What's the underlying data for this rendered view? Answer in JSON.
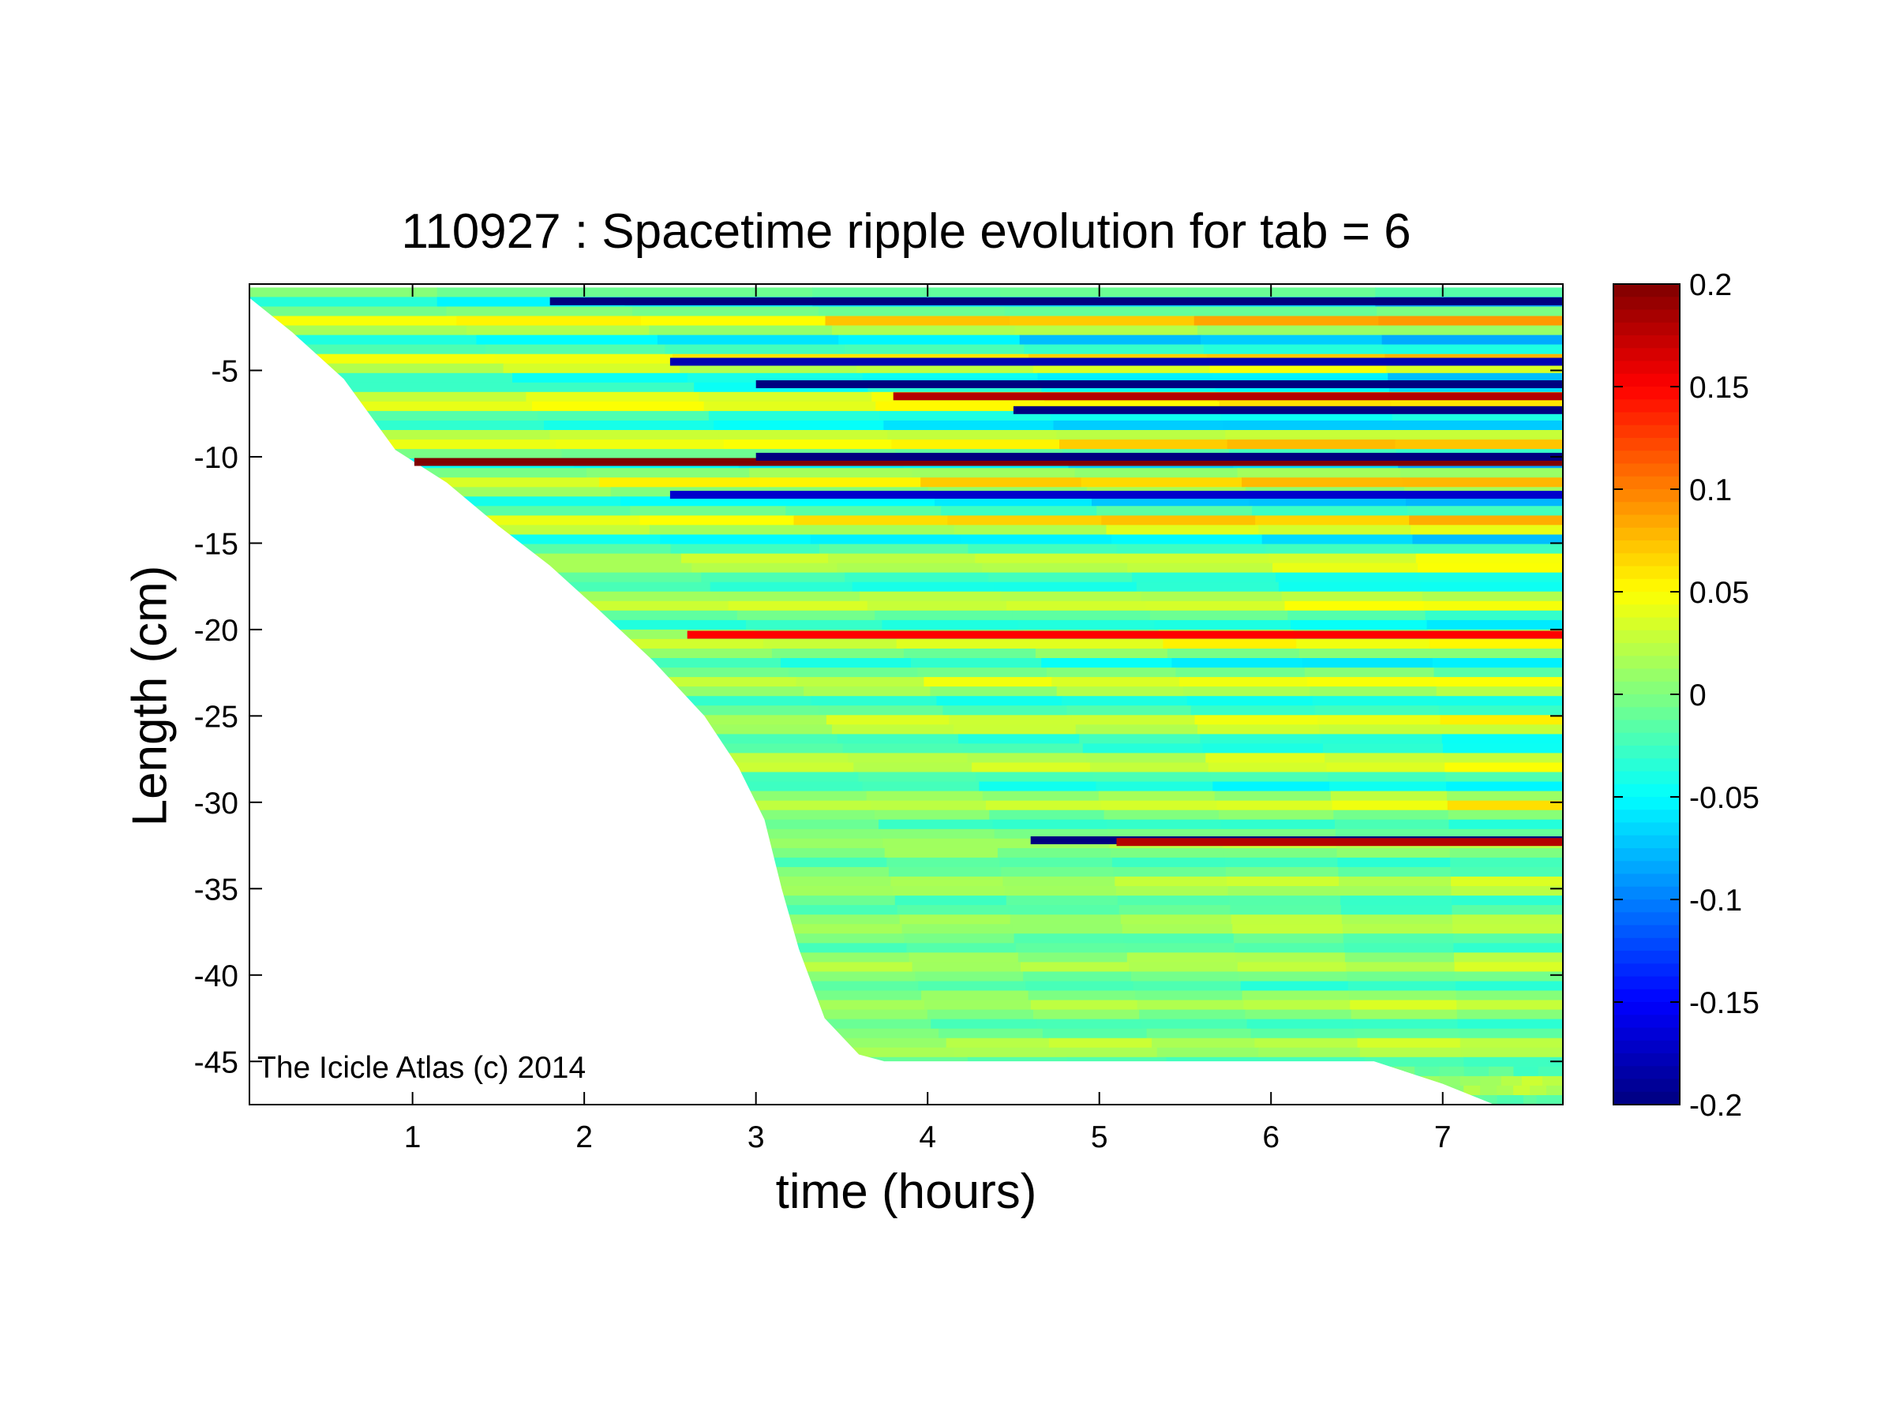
{
  "chart_data": {
    "type": "heatmap",
    "title": "110927 : Spacetime ripple evolution for tab = 6",
    "xlabel": "time (hours)",
    "ylabel": "Length (cm)",
    "xlim": [
      0.05,
      7.7
    ],
    "ylim": [
      -47.5,
      0
    ],
    "xticks": [
      1,
      2,
      3,
      4,
      5,
      6,
      7
    ],
    "yticks": [
      -5,
      -10,
      -15,
      -20,
      -25,
      -30,
      -35,
      -40,
      -45
    ],
    "colorbar": {
      "colormap": "jet",
      "clim": [
        -0.2,
        0.2
      ],
      "ticks": [
        0.2,
        0.15,
        0.1,
        0.05,
        0,
        -0.05,
        -0.1,
        -0.15,
        -0.2
      ]
    },
    "icicle_length_front": [
      [
        0.05,
        -0.8
      ],
      [
        0.3,
        -2.8
      ],
      [
        0.6,
        -5.5
      ],
      [
        0.9,
        -9.6
      ],
      [
        1.2,
        -11.5
      ],
      [
        1.5,
        -14.0
      ],
      [
        1.8,
        -16.3
      ],
      [
        2.1,
        -19.0
      ],
      [
        2.4,
        -21.8
      ],
      [
        2.7,
        -25.0
      ],
      [
        2.9,
        -28.0
      ],
      [
        3.05,
        -31.0
      ],
      [
        3.15,
        -35.0
      ],
      [
        3.25,
        -38.5
      ],
      [
        3.4,
        -42.5
      ],
      [
        3.6,
        -44.6
      ],
      [
        3.75,
        -45.0
      ],
      [
        6.6,
        -45.0
      ],
      [
        7.0,
        -46.3
      ],
      [
        7.3,
        -47.5
      ]
    ],
    "notable_ripples": [
      {
        "y": -1.0,
        "t_start": 1.8,
        "value": -0.2
      },
      {
        "y": -4.5,
        "t_start": 2.5,
        "value": -0.18
      },
      {
        "y": -5.8,
        "t_start": 3.0,
        "value": -0.2
      },
      {
        "y": -6.5,
        "t_start": 3.8,
        "value": 0.18
      },
      {
        "y": -7.3,
        "t_start": 4.5,
        "value": -0.2
      },
      {
        "y": -10.3,
        "t_start": 1.0,
        "value": 0.2
      },
      {
        "y": -10.0,
        "t_start": 3.0,
        "value": -0.2
      },
      {
        "y": -12.2,
        "t_start": 2.5,
        "value": -0.17
      },
      {
        "y": -20.3,
        "t_start": 2.6,
        "value": 0.15
      },
      {
        "y": -32.2,
        "t_start": 4.6,
        "value": -0.2
      },
      {
        "y": -32.3,
        "t_start": 5.1,
        "value": 0.18
      }
    ],
    "watermark": "The Icicle Atlas (c) 2014"
  }
}
